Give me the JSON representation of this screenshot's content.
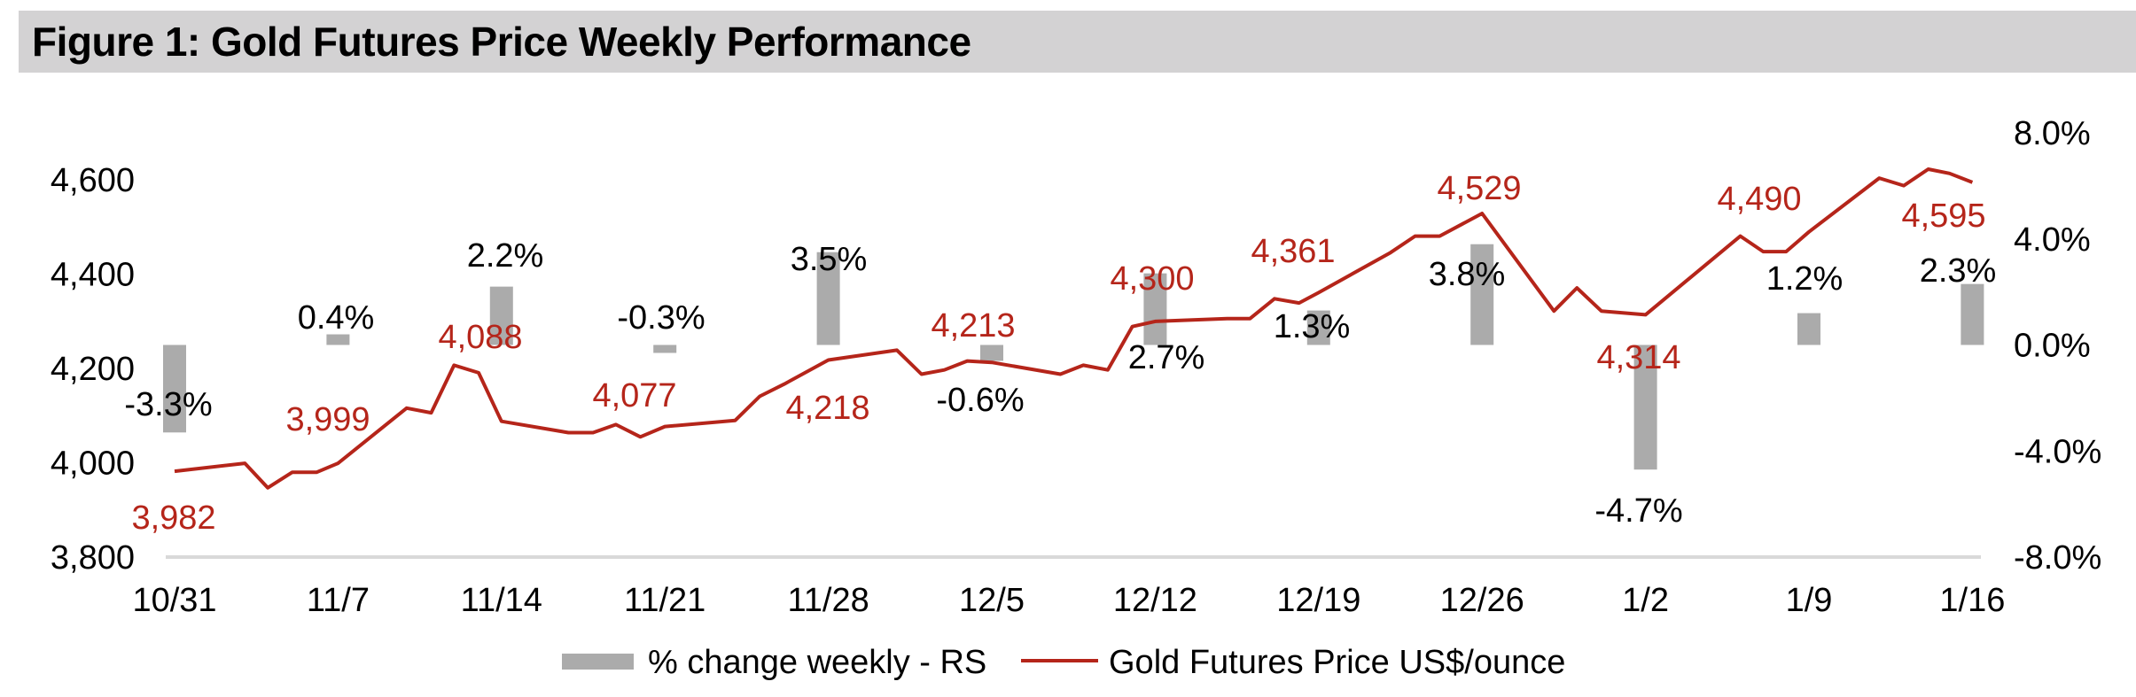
{
  "title": "Figure 1: Gold Futures Price Weekly Performance",
  "colors": {
    "price_line": "#B5251A",
    "bars": "#ABABAB",
    "title_band": "#D3D2D3",
    "axis": "#D9D9D9"
  },
  "chart_data": {
    "type": "bar+line",
    "title": "Figure 1: Gold Futures Price Weekly Performance",
    "categories": [
      "10/31",
      "11/7",
      "11/14",
      "11/21",
      "11/28",
      "12/5",
      "12/12",
      "12/19",
      "12/26",
      "1/2",
      "1/9",
      "1/16"
    ],
    "left_axis": {
      "label": "Gold Futures Price US$/ounce",
      "range": [
        3800,
        4700
      ],
      "ticks": [
        3800,
        4000,
        4200,
        4400,
        4600
      ],
      "tick_labels": [
        "3,800",
        "4,000",
        "4,200",
        "4,400",
        "4,600"
      ]
    },
    "right_axis": {
      "label": "% change weekly",
      "range": [
        -8,
        8
      ],
      "ticks": [
        -8,
        -4,
        0,
        4,
        8
      ],
      "tick_labels": [
        "-8.0%",
        "-4.0%",
        "0.0%",
        "4.0%",
        "8.0%"
      ]
    },
    "series": [
      {
        "name": "% change weekly - RS",
        "type": "bar",
        "axis": "right",
        "values": [
          -3.3,
          0.4,
          2.2,
          -0.3,
          3.5,
          -0.6,
          2.7,
          1.3,
          3.8,
          -4.7,
          1.2,
          2.3
        ],
        "labels": [
          "-3.3%",
          "0.4%",
          "2.2%",
          "-0.3%",
          "3.5%",
          "-0.6%",
          "2.7%",
          "1.3%",
          "3.8%",
          "-4.7%",
          "1.2%",
          "2.3%"
        ]
      },
      {
        "name": "Gold Futures Price US$/ounce",
        "type": "line",
        "axis": "left",
        "x_unit": "weeks since 10/31",
        "points": [
          [
            0,
            3982
          ],
          [
            0.43,
            3999
          ],
          [
            0.57,
            3947
          ],
          [
            0.72,
            3980
          ],
          [
            0.87,
            3980
          ],
          [
            1.0,
            3999
          ],
          [
            1.42,
            4116
          ],
          [
            1.57,
            4106
          ],
          [
            1.71,
            4207
          ],
          [
            1.86,
            4191
          ],
          [
            2.0,
            4088
          ],
          [
            2.41,
            4064
          ],
          [
            2.56,
            4064
          ],
          [
            2.7,
            4081
          ],
          [
            2.85,
            4055
          ],
          [
            3.0,
            4077
          ],
          [
            3.43,
            4090
          ],
          [
            3.58,
            4141
          ],
          [
            3.73,
            4167
          ],
          [
            4.0,
            4218
          ],
          [
            4.42,
            4239
          ],
          [
            4.57,
            4188
          ],
          [
            4.71,
            4197
          ],
          [
            4.85,
            4216
          ],
          [
            5.0,
            4213
          ],
          [
            5.42,
            4188
          ],
          [
            5.56,
            4207
          ],
          [
            5.71,
            4197
          ],
          [
            5.86,
            4289
          ],
          [
            6.0,
            4300
          ],
          [
            6.44,
            4306
          ],
          [
            6.58,
            4306
          ],
          [
            6.73,
            4348
          ],
          [
            6.88,
            4339
          ],
          [
            7.0,
            4361
          ],
          [
            7.44,
            4446
          ],
          [
            7.59,
            4481
          ],
          [
            7.74,
            4481
          ],
          [
            8.0,
            4529
          ],
          [
            8.44,
            4322
          ],
          [
            8.58,
            4371
          ],
          [
            8.73,
            4322
          ],
          [
            9.0,
            4314
          ],
          [
            9.58,
            4481
          ],
          [
            9.72,
            4448
          ],
          [
            9.86,
            4448
          ],
          [
            10.0,
            4490
          ],
          [
            10.43,
            4604
          ],
          [
            10.58,
            4588
          ],
          [
            10.73,
            4623
          ],
          [
            10.86,
            4614
          ],
          [
            11.0,
            4595
          ]
        ],
        "weekly_values": [
          3982,
          3999,
          4088,
          4077,
          4218,
          4213,
          4300,
          4361,
          4529,
          4314,
          4490,
          4595
        ],
        "labels": [
          "3,982",
          "3,999",
          "4,088",
          "4,077",
          "4,218",
          "4,213",
          "4,300",
          "4,361",
          "4,529",
          "4,314",
          "4,490",
          "4,595"
        ]
      }
    ],
    "legend": {
      "placement": "bottom",
      "items": [
        "% change weekly - RS",
        "Gold Futures Price US$/ounce"
      ]
    },
    "grid": false
  }
}
